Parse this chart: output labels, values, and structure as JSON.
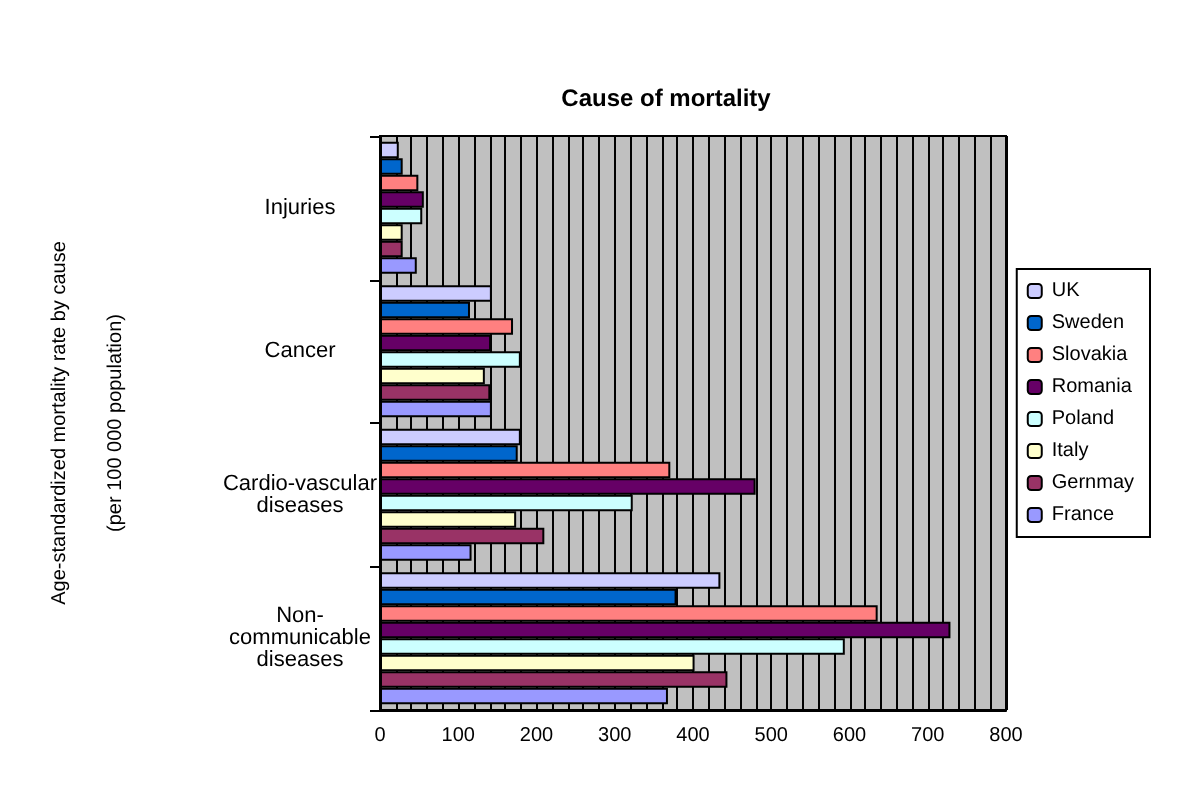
{
  "chart_data": {
    "type": "bar",
    "orientation": "horizontal",
    "title": "Cause of mortality",
    "ylabel": "Age-standardized mortality rate by cause\n(per 100 000 population)",
    "categories": [
      "Injuries",
      "Cancer",
      "Cardio-vascular\ndiseases",
      "Non-\ncommunicable\ndiseases"
    ],
    "series": [
      {
        "name": "UK",
        "color": "#ccccff",
        "values": [
          24,
          143,
          180,
          435
        ]
      },
      {
        "name": "Sweden",
        "color": "#0066cc",
        "values": [
          29,
          115,
          176,
          379
        ]
      },
      {
        "name": "Slovakia",
        "color": "#ff8080",
        "values": [
          49,
          170,
          371,
          636
        ]
      },
      {
        "name": "Romania",
        "color": "#660066",
        "values": [
          56,
          142,
          480,
          729
        ]
      },
      {
        "name": "Poland",
        "color": "#ccffff",
        "values": [
          54,
          180,
          323,
          594
        ]
      },
      {
        "name": "Italy",
        "color": "#ffffcc",
        "values": [
          29,
          134,
          174,
          402
        ]
      },
      {
        "name": "Gernmay",
        "color": "#993366",
        "values": [
          29,
          141,
          210,
          444
        ]
      },
      {
        "name": "France",
        "color": "#9999ff",
        "values": [
          47,
          143,
          117,
          368
        ]
      }
    ],
    "xlim": [
      0,
      800
    ],
    "xticks": [
      0,
      100,
      200,
      300,
      400,
      500,
      600,
      700,
      800
    ],
    "grid": "x",
    "legend": "right"
  }
}
